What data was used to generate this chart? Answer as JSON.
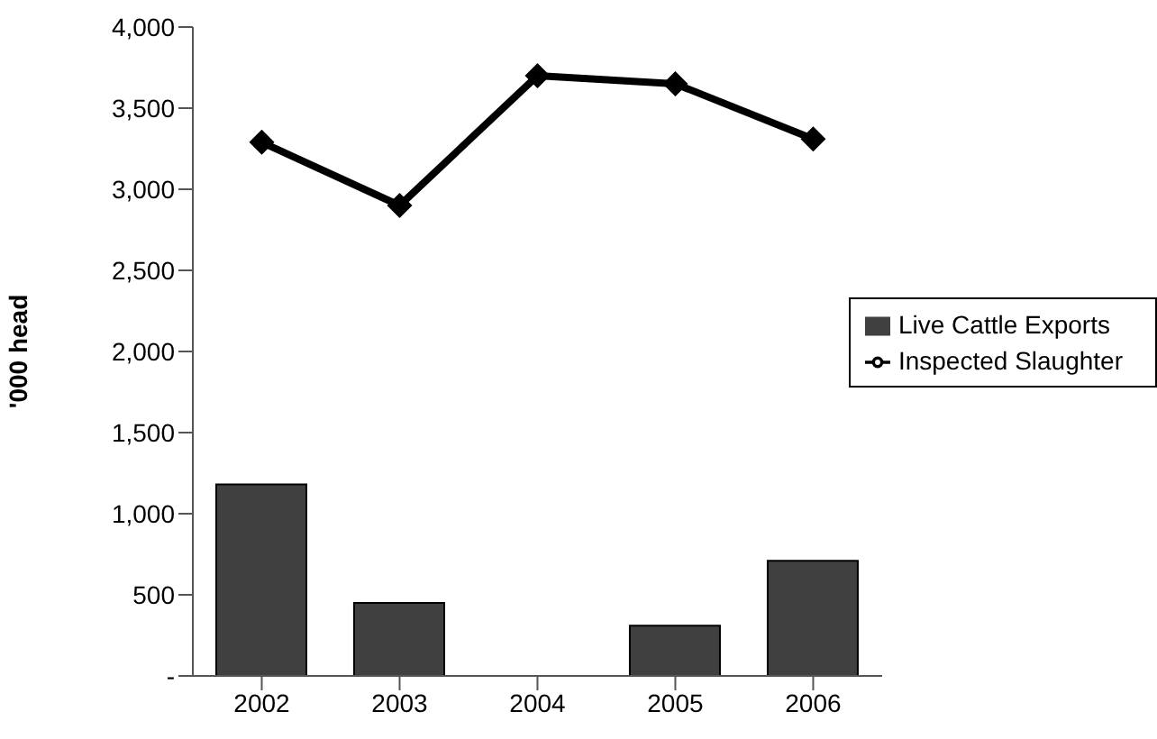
{
  "chart_data": {
    "type": "bar",
    "ylabel": "'000 head",
    "categories": [
      "2002",
      "2003",
      "2004",
      "2005",
      "2006"
    ],
    "series": [
      {
        "name": "Live Cattle Exports",
        "color": "#404040",
        "values": [
          1180,
          450,
          null,
          310,
          710
        ]
      },
      {
        "name": "Inspected Slaughter",
        "type": "line",
        "color": "#000000",
        "values": [
          3290,
          2900,
          3700,
          3650,
          3310
        ]
      }
    ],
    "ylim": [
      0,
      4000
    ],
    "yticks": [
      {
        "value": 0,
        "label": "-"
      },
      500,
      {
        "value": 1000,
        "label": "1,000"
      },
      {
        "value": 1500,
        "label": "1,500"
      },
      {
        "value": 2000,
        "label": "2,000"
      },
      {
        "value": 2500,
        "label": "2,500"
      },
      {
        "value": 3000,
        "label": "3,000"
      },
      {
        "value": 3500,
        "label": "3,500"
      },
      {
        "value": 4000,
        "label": "4,000"
      }
    ],
    "grid": false,
    "legend": "right",
    "marker": "diamond",
    "line_style": "solid"
  }
}
